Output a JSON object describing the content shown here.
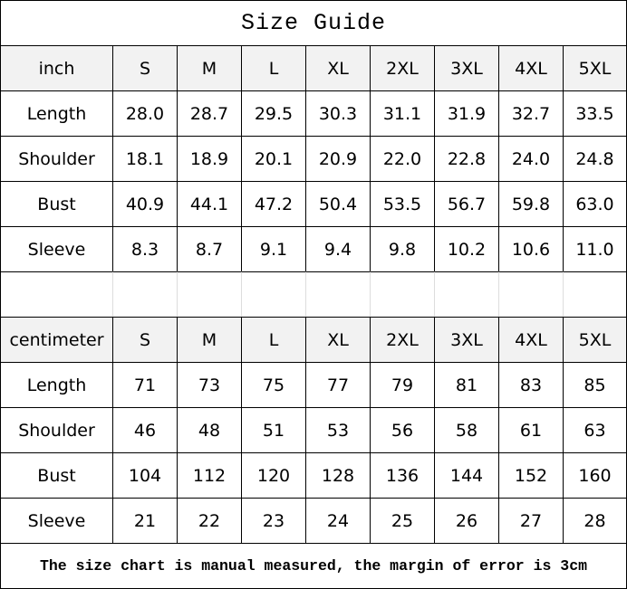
{
  "title": "Size Guide",
  "sizes": [
    "S",
    "M",
    "L",
    "XL",
    "2XL",
    "3XL",
    "4XL",
    "5XL"
  ],
  "inch": {
    "unit_label": "inch",
    "rows": [
      {
        "label": "Length",
        "values": [
          "28.0",
          "28.7",
          "29.5",
          "30.3",
          "31.1",
          "31.9",
          "32.7",
          "33.5"
        ]
      },
      {
        "label": "Shoulder",
        "values": [
          "18.1",
          "18.9",
          "20.1",
          "20.9",
          "22.0",
          "22.8",
          "24.0",
          "24.8"
        ]
      },
      {
        "label": "Bust",
        "values": [
          "40.9",
          "44.1",
          "47.2",
          "50.4",
          "53.5",
          "56.7",
          "59.8",
          "63.0"
        ]
      },
      {
        "label": "Sleeve",
        "values": [
          "8.3",
          "8.7",
          "9.1",
          "9.4",
          "9.8",
          "10.2",
          "10.6",
          "11.0"
        ]
      }
    ]
  },
  "centimeter": {
    "unit_label": "centimeter",
    "rows": [
      {
        "label": "Length",
        "values": [
          "71",
          "73",
          "75",
          "77",
          "79",
          "81",
          "83",
          "85"
        ]
      },
      {
        "label": "Shoulder",
        "values": [
          "46",
          "48",
          "51",
          "53",
          "56",
          "58",
          "61",
          "63"
        ]
      },
      {
        "label": "Bust",
        "values": [
          "104",
          "112",
          "120",
          "128",
          "136",
          "144",
          "152",
          "160"
        ]
      },
      {
        "label": "Sleeve",
        "values": [
          "21",
          "22",
          "23",
          "24",
          "25",
          "26",
          "27",
          "28"
        ]
      }
    ]
  },
  "footer": "The size chart is manual measured, the margin of error is 3cm"
}
